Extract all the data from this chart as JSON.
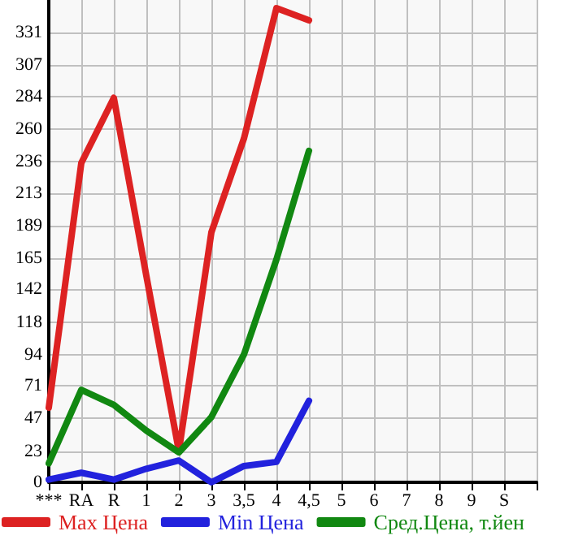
{
  "chart_data": {
    "type": "line",
    "categories": [
      "***",
      "RA",
      "R",
      "1",
      "2",
      "3",
      "3,5",
      "4",
      "4,5",
      "5",
      "6",
      "7",
      "8",
      "9",
      "S",
      null
    ],
    "series": [
      {
        "name": "Max Цена",
        "color": "#dd2222",
        "values": [
          55,
          235,
          283,
          152,
          23,
          184,
          253,
          349,
          340,
          null,
          null,
          null,
          null,
          null,
          null,
          null
        ]
      },
      {
        "name": "Min Цена",
        "color": "#2222dd",
        "values": [
          2,
          7,
          2,
          10,
          16,
          0,
          12,
          15,
          60,
          null,
          null,
          null,
          null,
          null,
          null,
          null
        ]
      },
      {
        "name": "Сред.Цена, т.йен",
        "color": "#118811",
        "values": [
          14,
          68,
          57,
          38,
          22,
          48,
          94,
          164,
          244,
          null,
          null,
          null,
          null,
          null,
          null,
          null
        ]
      }
    ],
    "ylim": [
      0,
      355
    ],
    "yticks": [
      0,
      23,
      47,
      71,
      94,
      118,
      142,
      165,
      189,
      213,
      236,
      260,
      284,
      307,
      331
    ],
    "grid": true,
    "legend": "bottom",
    "marker": "none",
    "line_style": "solid"
  }
}
